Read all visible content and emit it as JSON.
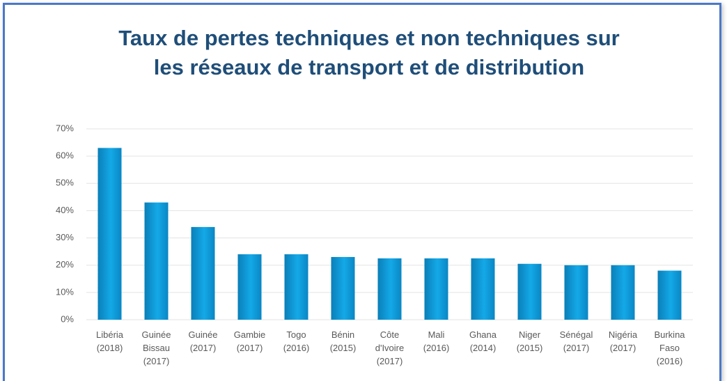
{
  "chart_data": {
    "type": "bar",
    "title": "Taux de pertes techniques et non techniques sur les réseaux de transport et de distribution",
    "categories": [
      "Libéria (2018)",
      "Guinée Bissau (2017)",
      "Guinée (2017)",
      "Gambie (2017)",
      "Togo (2016)",
      "Bénin (2015)",
      "Côte d'Ivoire (2017)",
      "Mali (2016)",
      "Ghana (2014)",
      "Niger (2015)",
      "Sénégal (2017)",
      "Nigéria (2017)",
      "Burkina Faso (2016)"
    ],
    "values": [
      63,
      43,
      34,
      24,
      24,
      23,
      22.5,
      22.5,
      22.5,
      20.5,
      20,
      20,
      18
    ],
    "color": "#14a9e8",
    "ylim": [
      0,
      70
    ],
    "yticks": [
      {
        "value": 0,
        "label": "0%"
      },
      {
        "value": 10,
        "label": "10%"
      },
      {
        "value": 20,
        "label": "20%"
      },
      {
        "value": 30,
        "label": "30%"
      },
      {
        "value": 40,
        "label": "40%"
      },
      {
        "value": 50,
        "label": "50%"
      },
      {
        "value": 60,
        "label": "60%"
      },
      {
        "value": 70,
        "label": "70%"
      }
    ],
    "grid": true
  }
}
